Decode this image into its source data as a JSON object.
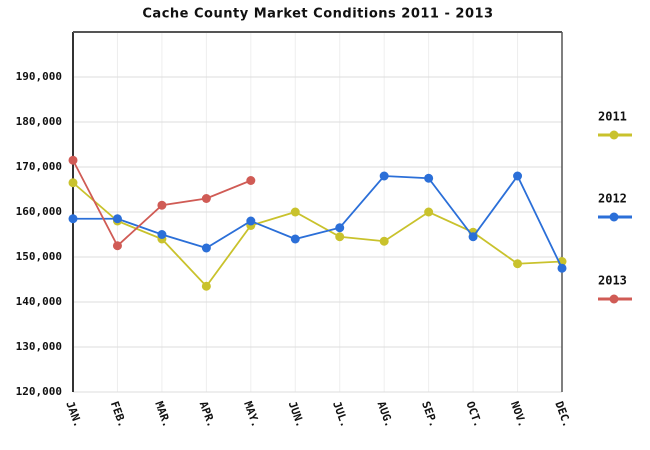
{
  "chart_data": {
    "type": "line",
    "title": "Cache County Market Conditions 2011 - 2013",
    "categories": [
      "JAN.",
      "FEB.",
      "MAR.",
      "APR.",
      "MAY.",
      "JUN.",
      "JUL.",
      "AUG.",
      "SEP.",
      "OCT.",
      "NOV.",
      "DEC."
    ],
    "series": [
      {
        "name": "2011",
        "color": "#c9c22c",
        "values": [
          166500,
          158000,
          154000,
          143500,
          157000,
          160000,
          154500,
          153500,
          160000,
          155500,
          148500,
          149000
        ]
      },
      {
        "name": "2012",
        "color": "#2b6fd8",
        "values": [
          158500,
          158500,
          155000,
          152000,
          158000,
          154000,
          156500,
          168000,
          167500,
          154500,
          168000,
          147500
        ]
      },
      {
        "name": "2013",
        "color": "#d05b55",
        "values": [
          171500,
          152500,
          161500,
          163000,
          167000,
          null,
          null,
          null,
          null,
          null,
          null,
          null
        ]
      }
    ],
    "ylim": [
      120000,
      200000
    ],
    "yticks": [
      {
        "value": 120000,
        "label": "120,000"
      },
      {
        "value": 130000,
        "label": "130,000"
      },
      {
        "value": 140000,
        "label": "140,000"
      },
      {
        "value": 150000,
        "label": "150,000"
      },
      {
        "value": 160000,
        "label": "160,000"
      },
      {
        "value": 170000,
        "label": "170,000"
      },
      {
        "value": 180000,
        "label": "180,000"
      },
      {
        "value": 190000,
        "label": "190,000"
      }
    ],
    "grid": true
  }
}
